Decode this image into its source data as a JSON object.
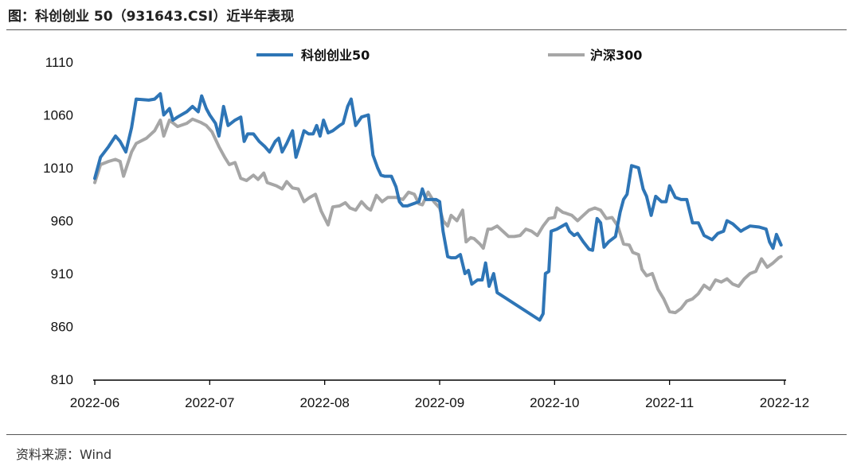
{
  "header": {
    "title": "图：科创创业 50（931643.CSI）近半年表现"
  },
  "footer": {
    "source": "资料来源：Wind"
  },
  "colors": {
    "series_1": "#2e75b6",
    "series_2": "#a6a6a6",
    "axis": "#000000"
  },
  "chart_data": {
    "type": "line",
    "title": "",
    "xlabel": "",
    "ylabel": "",
    "ylim": [
      810,
      1110
    ],
    "y_ticks": [
      810,
      860,
      910,
      960,
      1010,
      1060,
      1110
    ],
    "x_ticks": [
      "2022-06",
      "2022-07",
      "2022-08",
      "2022-09",
      "2022-10",
      "2022-11",
      "2022-12"
    ],
    "legend_position": "top",
    "grid": false,
    "series": [
      {
        "name": "科创创业50",
        "color": "#2e75b6",
        "points": [
          [
            0,
            1000
          ],
          [
            0.05,
            1020
          ],
          [
            0.12,
            1030
          ],
          [
            0.18,
            1040
          ],
          [
            0.22,
            1035
          ],
          [
            0.27,
            1025
          ],
          [
            0.32,
            1048
          ],
          [
            0.36,
            1075
          ],
          [
            0.47,
            1074
          ],
          [
            0.52,
            1075
          ],
          [
            0.57,
            1080
          ],
          [
            0.6,
            1060
          ],
          [
            0.65,
            1066
          ],
          [
            0.68,
            1055
          ],
          [
            0.72,
            1058
          ],
          [
            0.8,
            1063
          ],
          [
            0.85,
            1068
          ],
          [
            0.9,
            1063
          ],
          [
            0.93,
            1078
          ],
          [
            0.97,
            1066
          ],
          [
            1.0,
            1060
          ],
          [
            1.05,
            1052
          ],
          [
            1.08,
            1040
          ],
          [
            1.12,
            1068
          ],
          [
            1.16,
            1050
          ],
          [
            1.22,
            1055
          ],
          [
            1.27,
            1058
          ],
          [
            1.3,
            1035
          ],
          [
            1.33,
            1042
          ],
          [
            1.38,
            1042
          ],
          [
            1.43,
            1035
          ],
          [
            1.48,
            1030
          ],
          [
            1.52,
            1025
          ],
          [
            1.57,
            1035
          ],
          [
            1.6,
            1038
          ],
          [
            1.63,
            1025
          ],
          [
            1.67,
            1033
          ],
          [
            1.72,
            1045
          ],
          [
            1.75,
            1020
          ],
          [
            1.78,
            1030
          ],
          [
            1.82,
            1045
          ],
          [
            1.86,
            1042
          ],
          [
            1.9,
            1042
          ],
          [
            1.93,
            1050
          ],
          [
            1.96,
            1040
          ],
          [
            1.99,
            1055
          ],
          [
            2.03,
            1043
          ],
          [
            2.07,
            1045
          ],
          [
            2.13,
            1050
          ],
          [
            2.16,
            1052
          ],
          [
            2.2,
            1068
          ],
          [
            2.23,
            1075
          ],
          [
            2.27,
            1050
          ],
          [
            2.32,
            1058
          ],
          [
            2.38,
            1060
          ],
          [
            2.42,
            1022
          ],
          [
            2.46,
            1010
          ],
          [
            2.49,
            1003
          ],
          [
            2.52,
            1002
          ],
          [
            2.58,
            1002
          ],
          [
            2.62,
            992
          ],
          [
            2.65,
            978
          ],
          [
            2.68,
            974
          ],
          [
            2.72,
            974
          ],
          [
            2.77,
            976
          ],
          [
            2.82,
            978
          ],
          [
            2.85,
            990
          ],
          [
            2.88,
            980
          ],
          [
            2.92,
            980
          ],
          [
            2.97,
            980
          ],
          [
            3.0,
            978
          ],
          [
            3.03,
            950
          ],
          [
            3.07,
            926
          ],
          [
            3.1,
            925
          ],
          [
            3.14,
            925
          ],
          [
            3.18,
            928
          ],
          [
            3.22,
            910
          ],
          [
            3.25,
            913
          ],
          [
            3.28,
            900
          ],
          [
            3.33,
            904
          ],
          [
            3.37,
            904
          ],
          [
            3.4,
            920
          ],
          [
            3.43,
            898
          ],
          [
            3.47,
            910
          ],
          [
            3.5,
            892
          ],
          [
            3.87,
            866
          ],
          [
            3.9,
            872
          ],
          [
            3.92,
            910
          ],
          [
            3.95,
            912
          ],
          [
            3.97,
            950
          ],
          [
            4.02,
            952
          ],
          [
            4.1,
            957
          ],
          [
            4.13,
            950
          ],
          [
            4.17,
            946
          ],
          [
            4.2,
            948
          ],
          [
            4.25,
            940
          ],
          [
            4.3,
            933
          ],
          [
            4.33,
            932
          ],
          [
            4.37,
            962
          ],
          [
            4.4,
            958
          ],
          [
            4.43,
            935
          ],
          [
            4.47,
            940
          ],
          [
            4.53,
            945
          ],
          [
            4.57,
            968
          ],
          [
            4.6,
            980
          ],
          [
            4.63,
            985
          ],
          [
            4.67,
            1012
          ],
          [
            4.73,
            1010
          ],
          [
            4.77,
            990
          ],
          [
            4.8,
            983
          ],
          [
            4.84,
            965
          ],
          [
            4.88,
            983
          ],
          [
            4.93,
            978
          ],
          [
            4.97,
            978
          ],
          [
            5.0,
            993
          ],
          [
            5.05,
            982
          ],
          [
            5.1,
            980
          ],
          [
            5.15,
            980
          ],
          [
            5.2,
            958
          ],
          [
            5.25,
            958
          ],
          [
            5.3,
            946
          ],
          [
            5.37,
            942
          ],
          [
            5.42,
            948
          ],
          [
            5.47,
            950
          ],
          [
            5.5,
            960
          ],
          [
            5.55,
            957
          ],
          [
            5.62,
            950
          ],
          [
            5.65,
            952
          ],
          [
            5.7,
            955
          ],
          [
            5.78,
            954
          ],
          [
            5.84,
            952
          ],
          [
            5.87,
            940
          ],
          [
            5.9,
            934
          ],
          [
            5.93,
            947
          ],
          [
            5.97,
            937
          ]
        ]
      },
      {
        "name": "沪深300",
        "color": "#a6a6a6",
        "points": [
          [
            0,
            996
          ],
          [
            0.05,
            1013
          ],
          [
            0.12,
            1016
          ],
          [
            0.18,
            1018
          ],
          [
            0.22,
            1016
          ],
          [
            0.25,
            1002
          ],
          [
            0.32,
            1025
          ],
          [
            0.36,
            1033
          ],
          [
            0.45,
            1038
          ],
          [
            0.52,
            1045
          ],
          [
            0.57,
            1055
          ],
          [
            0.6,
            1040
          ],
          [
            0.65,
            1055
          ],
          [
            0.72,
            1049
          ],
          [
            0.8,
            1052
          ],
          [
            0.85,
            1056
          ],
          [
            0.92,
            1053
          ],
          [
            0.97,
            1050
          ],
          [
            1.02,
            1044
          ],
          [
            1.08,
            1030
          ],
          [
            1.13,
            1020
          ],
          [
            1.17,
            1013
          ],
          [
            1.22,
            1015
          ],
          [
            1.27,
            1000
          ],
          [
            1.32,
            998
          ],
          [
            1.38,
            1003
          ],
          [
            1.42,
            999
          ],
          [
            1.47,
            1005
          ],
          [
            1.5,
            996
          ],
          [
            1.58,
            993
          ],
          [
            1.63,
            990
          ],
          [
            1.67,
            997
          ],
          [
            1.72,
            991
          ],
          [
            1.77,
            990
          ],
          [
            1.82,
            978
          ],
          [
            1.87,
            982
          ],
          [
            1.92,
            985
          ],
          [
            1.97,
            969
          ],
          [
            2.03,
            956
          ],
          [
            2.07,
            973
          ],
          [
            2.13,
            974
          ],
          [
            2.18,
            977
          ],
          [
            2.22,
            972
          ],
          [
            2.27,
            970
          ],
          [
            2.32,
            978
          ],
          [
            2.37,
            972
          ],
          [
            2.4,
            970
          ],
          [
            2.45,
            984
          ],
          [
            2.5,
            978
          ],
          [
            2.55,
            982
          ],
          [
            2.62,
            982
          ],
          [
            2.68,
            980
          ],
          [
            2.73,
            987
          ],
          [
            2.78,
            985
          ],
          [
            2.82,
            976
          ],
          [
            2.85,
            975
          ],
          [
            2.9,
            987
          ],
          [
            2.95,
            978
          ],
          [
            3.0,
            972
          ],
          [
            3.03,
            960
          ],
          [
            3.07,
            955
          ],
          [
            3.1,
            965
          ],
          [
            3.15,
            960
          ],
          [
            3.2,
            970
          ],
          [
            3.23,
            940
          ],
          [
            3.27,
            944
          ],
          [
            3.3,
            943
          ],
          [
            3.35,
            938
          ],
          [
            3.38,
            934
          ],
          [
            3.42,
            952
          ],
          [
            3.45,
            952
          ],
          [
            3.5,
            955
          ],
          [
            3.6,
            945
          ],
          [
            3.65,
            945
          ],
          [
            3.7,
            946
          ],
          [
            3.75,
            952
          ],
          [
            3.8,
            950
          ],
          [
            3.85,
            946
          ],
          [
            3.9,
            955
          ],
          [
            3.95,
            962
          ],
          [
            4.0,
            963
          ],
          [
            4.02,
            972
          ],
          [
            4.07,
            968
          ],
          [
            4.1,
            967
          ],
          [
            4.15,
            965
          ],
          [
            4.2,
            960
          ],
          [
            4.25,
            965
          ],
          [
            4.3,
            970
          ],
          [
            4.35,
            972
          ],
          [
            4.4,
            970
          ],
          [
            4.45,
            962
          ],
          [
            4.5,
            963
          ],
          [
            4.55,
            955
          ],
          [
            4.6,
            938
          ],
          [
            4.65,
            937
          ],
          [
            4.68,
            930
          ],
          [
            4.73,
            928
          ],
          [
            4.76,
            914
          ],
          [
            4.8,
            908
          ],
          [
            4.85,
            910
          ],
          [
            4.9,
            895
          ],
          [
            4.95,
            886
          ],
          [
            5.0,
            874
          ],
          [
            5.05,
            873
          ],
          [
            5.1,
            877
          ],
          [
            5.15,
            884
          ],
          [
            5.2,
            886
          ],
          [
            5.25,
            891
          ],
          [
            5.3,
            899
          ],
          [
            5.35,
            895
          ],
          [
            5.4,
            904
          ],
          [
            5.45,
            902
          ],
          [
            5.5,
            905
          ],
          [
            5.55,
            900
          ],
          [
            5.6,
            898
          ],
          [
            5.65,
            905
          ],
          [
            5.7,
            910
          ],
          [
            5.75,
            912
          ],
          [
            5.8,
            924
          ],
          [
            5.85,
            916
          ],
          [
            5.9,
            920
          ],
          [
            5.95,
            925
          ],
          [
            5.97,
            926
          ]
        ]
      }
    ]
  }
}
